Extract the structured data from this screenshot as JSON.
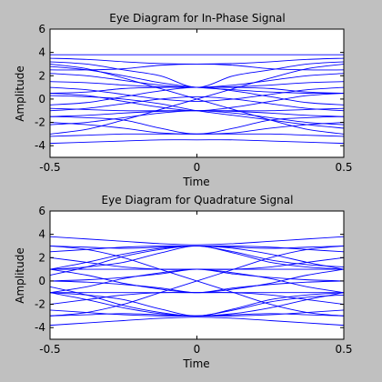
{
  "figure": {
    "background": "#c0c0c0",
    "trace_color": "#0000ff"
  },
  "chart_data": [
    {
      "type": "line",
      "title": "Eye Diagram for In-Phase Signal",
      "xlabel": "Time",
      "ylabel": "Amplitude",
      "xlim": [
        -0.5,
        0.5
      ],
      "ylim": [
        -5,
        6
      ],
      "xticks": [
        -0.5,
        0,
        0.5
      ],
      "yticks": [
        -4,
        -2,
        0,
        2,
        4,
        6
      ],
      "xtick_labels": [
        "-0.5",
        "0",
        "0.5"
      ],
      "ytick_labels": [
        "-4",
        "-2",
        "0",
        "2",
        "4",
        "6"
      ],
      "grid": false,
      "x": [
        -0.5,
        -0.375,
        -0.25,
        -0.125,
        0,
        0.125,
        0.25,
        0.375,
        0.5
      ],
      "series": [
        {
          "values": [
            3.8,
            3.8,
            3.8,
            3.8,
            3.8,
            3.8,
            3.8,
            3.8,
            3.8
          ]
        },
        {
          "values": [
            3.5,
            3.4,
            3.2,
            3.05,
            3.0,
            3.05,
            3.2,
            3.4,
            3.5
          ]
        },
        {
          "values": [
            3.2,
            3.0,
            2.5,
            2.0,
            1.0,
            2.0,
            2.5,
            3.0,
            3.2
          ]
        },
        {
          "values": [
            2.5,
            2.5,
            2.6,
            2.9,
            3.0,
            2.9,
            2.6,
            2.5,
            2.5
          ]
        },
        {
          "values": [
            2.8,
            2.5,
            2.0,
            1.4,
            1.0,
            0.8,
            0.6,
            0.5,
            0.5
          ]
        },
        {
          "values": [
            0.5,
            0.6,
            0.9,
            1.0,
            1.0,
            1.0,
            0.9,
            0.6,
            0.5
          ]
        },
        {
          "values": [
            1.5,
            1.4,
            1.2,
            1.05,
            1.0,
            1.05,
            1.2,
            1.4,
            1.5
          ]
        },
        {
          "values": [
            -0.5,
            -0.3,
            0.2,
            0.7,
            1.0,
            0.7,
            0.2,
            -0.3,
            -0.5
          ]
        },
        {
          "values": [
            0.3,
            0.2,
            0.0,
            -0.4,
            -1.0,
            -1.4,
            -1.8,
            -2.2,
            -2.5
          ]
        },
        {
          "values": [
            -0.8,
            -0.9,
            -1.0,
            -1.0,
            -1.0,
            -1.0,
            -1.0,
            -0.9,
            -0.8
          ]
        },
        {
          "values": [
            -1.5,
            -1.4,
            -1.2,
            -1.05,
            -1.0,
            -1.05,
            -1.2,
            -1.4,
            -1.5
          ]
        },
        {
          "values": [
            0.5,
            0.3,
            -0.2,
            -0.7,
            -1.0,
            -0.7,
            -0.2,
            0.3,
            0.5
          ]
        },
        {
          "values": [
            -1.5,
            -1.6,
            -1.8,
            -2.5,
            -3.0,
            -2.5,
            -1.8,
            -1.6,
            -1.5
          ]
        },
        {
          "values": [
            -2.0,
            -2.2,
            -2.5,
            -2.9,
            -3.0,
            -2.9,
            -2.5,
            -2.2,
            -2.0
          ]
        },
        {
          "values": [
            -3.2,
            -3.1,
            -3.0,
            -3.0,
            -3.0,
            -3.0,
            -3.0,
            -3.1,
            -3.2
          ]
        },
        {
          "values": [
            -3.8,
            -3.7,
            -3.6,
            -3.5,
            -3.5,
            -3.5,
            -3.6,
            -3.7,
            -3.8
          ]
        },
        {
          "values": [
            3.0,
            2.6,
            1.8,
            0.9,
            0.0,
            -0.9,
            -1.8,
            -2.6,
            -3.0
          ]
        },
        {
          "values": [
            -3.0,
            -2.6,
            -1.8,
            -0.9,
            0.0,
            0.9,
            1.8,
            2.6,
            3.0
          ]
        },
        {
          "values": [
            1.0,
            0.8,
            0.4,
            0.0,
            -0.2,
            0.0,
            0.4,
            0.8,
            1.0
          ]
        },
        {
          "values": [
            -1.0,
            -0.8,
            -0.4,
            0.0,
            0.2,
            0.0,
            -0.4,
            -0.8,
            -1.0
          ]
        },
        {
          "values": [
            2.2,
            2.0,
            1.6,
            1.2,
            1.0,
            1.2,
            1.6,
            2.0,
            2.2
          ]
        },
        {
          "values": [
            -2.2,
            -2.0,
            -1.6,
            -1.2,
            -1.0,
            -1.2,
            -1.6,
            -2.0,
            -2.2
          ]
        }
      ]
    },
    {
      "type": "line",
      "title": "Eye Diagram for Quadrature Signal",
      "xlabel": "Time",
      "ylabel": "Amplitude",
      "xlim": [
        -0.5,
        0.5
      ],
      "ylim": [
        -5,
        6
      ],
      "xticks": [
        -0.5,
        0,
        0.5
      ],
      "yticks": [
        -4,
        -2,
        0,
        2,
        4,
        6
      ],
      "xtick_labels": [
        "-0.5",
        "0",
        "0.5"
      ],
      "ytick_labels": [
        "-4",
        "-2",
        "0",
        "2",
        "4",
        "6"
      ],
      "grid": false,
      "x": [
        -0.5,
        -0.375,
        -0.25,
        -0.125,
        0,
        0.125,
        0.25,
        0.375,
        0.5
      ],
      "series": [
        {
          "values": [
            3.8,
            3.6,
            3.4,
            3.2,
            3.1,
            3.2,
            3.4,
            3.6,
            3.8
          ]
        },
        {
          "values": [
            2.5,
            2.7,
            2.9,
            3.0,
            3.0,
            3.0,
            2.9,
            2.7,
            2.5
          ]
        },
        {
          "values": [
            3.0,
            2.9,
            2.8,
            2.9,
            3.0,
            2.9,
            2.8,
            2.9,
            3.0
          ]
        },
        {
          "values": [
            1.0,
            1.6,
            2.3,
            2.8,
            3.0,
            2.8,
            2.3,
            1.6,
            1.0
          ]
        },
        {
          "values": [
            0.5,
            1.2,
            2.1,
            2.7,
            3.0,
            2.5,
            1.8,
            1.4,
            1.2
          ]
        },
        {
          "values": [
            2.0,
            1.6,
            1.2,
            1.0,
            1.0,
            1.0,
            1.2,
            1.6,
            2.0
          ]
        },
        {
          "values": [
            1.0,
            1.0,
            1.0,
            1.0,
            1.0,
            1.0,
            1.0,
            1.0,
            1.0
          ]
        },
        {
          "values": [
            -1.0,
            -0.5,
            0.2,
            0.7,
            1.0,
            0.7,
            0.2,
            -0.5,
            -1.0
          ]
        },
        {
          "values": [
            1.0,
            0.5,
            -0.2,
            -0.7,
            -1.0,
            -0.7,
            -0.2,
            0.5,
            1.0
          ]
        },
        {
          "values": [
            -1.0,
            -1.0,
            -1.0,
            -1.0,
            -1.0,
            -1.0,
            -1.0,
            -1.0,
            -1.0
          ]
        },
        {
          "values": [
            -2.0,
            -1.6,
            -1.2,
            -1.0,
            -1.0,
            -1.0,
            -1.2,
            -1.6,
            -2.0
          ]
        },
        {
          "values": [
            -1.0,
            -1.6,
            -2.3,
            -2.8,
            -3.0,
            -2.8,
            -2.3,
            -1.6,
            -1.0
          ]
        },
        {
          "values": [
            -0.5,
            -1.2,
            -2.1,
            -2.7,
            -3.0,
            -2.5,
            -1.8,
            -1.4,
            -1.2
          ]
        },
        {
          "values": [
            -2.5,
            -2.7,
            -2.9,
            -3.0,
            -3.0,
            -3.0,
            -2.9,
            -2.7,
            -2.5
          ]
        },
        {
          "values": [
            -3.0,
            -2.9,
            -2.8,
            -2.9,
            -3.0,
            -2.9,
            -2.8,
            -2.9,
            -3.0
          ]
        },
        {
          "values": [
            -3.8,
            -3.6,
            -3.4,
            -3.2,
            -3.1,
            -3.2,
            -3.4,
            -3.6,
            -3.8
          ]
        },
        {
          "values": [
            3.0,
            2.7,
            2.0,
            1.0,
            0.0,
            -1.0,
            -2.0,
            -2.7,
            -3.0
          ]
        },
        {
          "values": [
            -3.0,
            -2.7,
            -2.0,
            -1.0,
            0.0,
            1.0,
            2.0,
            2.7,
            3.0
          ]
        },
        {
          "values": [
            1.0,
            1.2,
            1.6,
            2.4,
            3.0,
            2.4,
            1.6,
            1.2,
            1.0
          ]
        },
        {
          "values": [
            -1.0,
            -1.2,
            -1.6,
            -2.4,
            -3.0,
            -2.4,
            -1.6,
            -1.2,
            -1.0
          ]
        },
        {
          "values": [
            0.0,
            0.1,
            0.3,
            0.6,
            1.0,
            0.6,
            0.3,
            0.1,
            0.0
          ]
        },
        {
          "values": [
            0.0,
            -0.1,
            -0.3,
            -0.6,
            -1.0,
            -0.6,
            -0.3,
            -0.1,
            0.0
          ]
        }
      ]
    }
  ]
}
